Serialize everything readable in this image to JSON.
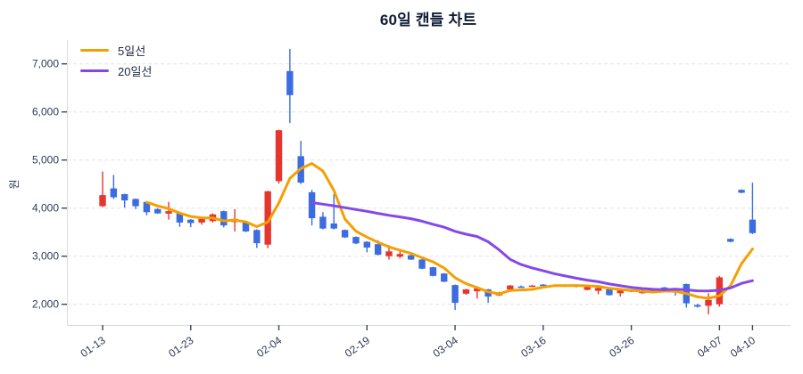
{
  "chart_data": {
    "type": "candlestick",
    "title": "60일 캔들 차트",
    "ylabel": "원",
    "yticks": [
      2000,
      3000,
      4000,
      5000,
      6000,
      7000
    ],
    "ylim": [
      1570,
      7490
    ],
    "grid": "horizontal-dashed",
    "legend_position": "top-left",
    "legend": [
      {
        "label": "5일선",
        "color": "#f59f00",
        "type": "moving-average",
        "window": 5
      },
      {
        "label": "20일선",
        "color": "#8548e8",
        "type": "moving-average",
        "window": 20
      }
    ],
    "colors": {
      "up": "#e5352e",
      "down": "#3b6ce0"
    },
    "xticks": [
      {
        "index": 0,
        "label": "01-13"
      },
      {
        "index": 8,
        "label": "01-23"
      },
      {
        "index": 16,
        "label": "02-04"
      },
      {
        "index": 24,
        "label": "02-19"
      },
      {
        "index": 32,
        "label": "03-04"
      },
      {
        "index": 40,
        "label": "03-16"
      },
      {
        "index": 48,
        "label": "03-26"
      },
      {
        "index": 56,
        "label": "04-07"
      },
      {
        "index": 59,
        "label": "04-10"
      }
    ],
    "ohlc_order": [
      "open",
      "high",
      "low",
      "close"
    ],
    "candles": [
      [
        4040,
        4760,
        4020,
        4270
      ],
      [
        4410,
        4690,
        4190,
        4225
      ],
      [
        4290,
        4300,
        4010,
        4160
      ],
      [
        4190,
        4200,
        3980,
        4040
      ],
      [
        4130,
        4140,
        3850,
        3915
      ],
      [
        3980,
        4000,
        3880,
        3890
      ],
      [
        3885,
        4130,
        3760,
        3935
      ],
      [
        3900,
        3910,
        3610,
        3700
      ],
      [
        3760,
        3770,
        3605,
        3690
      ],
      [
        3700,
        3800,
        3655,
        3775
      ],
      [
        3730,
        3890,
        3700,
        3870
      ],
      [
        3935,
        3950,
        3600,
        3640
      ],
      [
        3710,
        3980,
        3515,
        3775
      ],
      [
        3700,
        3720,
        3500,
        3515
      ],
      [
        3545,
        3560,
        3170,
        3270
      ],
      [
        3240,
        4360,
        3165,
        4350
      ],
      [
        4560,
        5630,
        4510,
        5620
      ],
      [
        6850,
        7310,
        5770,
        6350
      ],
      [
        5080,
        5400,
        4500,
        4530
      ],
      [
        4330,
        4380,
        3640,
        3790
      ],
      [
        3820,
        3915,
        3560,
        3575
      ],
      [
        3680,
        4290,
        3555,
        3575
      ],
      [
        3545,
        3555,
        3380,
        3390
      ],
      [
        3400,
        3410,
        3250,
        3265
      ],
      [
        3300,
        3310,
        3080,
        3180
      ],
      [
        3250,
        3330,
        3015,
        3030
      ],
      [
        3000,
        3230,
        2930,
        3100
      ],
      [
        2990,
        3100,
        2960,
        3045
      ],
      [
        3020,
        3030,
        2920,
        2930
      ],
      [
        2930,
        2940,
        2730,
        2740
      ],
      [
        2770,
        2780,
        2580,
        2590
      ],
      [
        2640,
        2650,
        2460,
        2470
      ],
      [
        2400,
        2410,
        1880,
        2030
      ],
      [
        2220,
        2320,
        2200,
        2310
      ],
      [
        2270,
        2340,
        2120,
        2330
      ],
      [
        2310,
        2320,
        2030,
        2160
      ],
      [
        2185,
        2260,
        2170,
        2245
      ],
      [
        2310,
        2400,
        2300,
        2390
      ],
      [
        2370,
        2390,
        2350,
        2365
      ],
      [
        2370,
        2400,
        2360,
        2390
      ],
      [
        2410,
        2420,
        2380,
        2390
      ],
      [
        2380,
        2410,
        2370,
        2400
      ],
      [
        2380,
        2410,
        2360,
        2400
      ],
      [
        2400,
        2410,
        2350,
        2370
      ],
      [
        2300,
        2370,
        2290,
        2360
      ],
      [
        2280,
        2350,
        2210,
        2340
      ],
      [
        2310,
        2320,
        2180,
        2190
      ],
      [
        2230,
        2300,
        2160,
        2290
      ],
      [
        2290,
        2300,
        2250,
        2260
      ],
      [
        2230,
        2290,
        2220,
        2280
      ],
      [
        2310,
        2320,
        2240,
        2250
      ],
      [
        2350,
        2360,
        2280,
        2290
      ],
      [
        2330,
        2340,
        2180,
        2270
      ],
      [
        2420,
        2430,
        1930,
        2020
      ],
      [
        1985,
        2010,
        1930,
        1950
      ],
      [
        1970,
        2230,
        1790,
        2090
      ],
      [
        2000,
        2590,
        1950,
        2560
      ],
      [
        3360,
        3370,
        3290,
        3300
      ],
      [
        4380,
        4390,
        4310,
        4320
      ],
      [
        3760,
        4530,
        3460,
        3480
      ]
    ]
  }
}
